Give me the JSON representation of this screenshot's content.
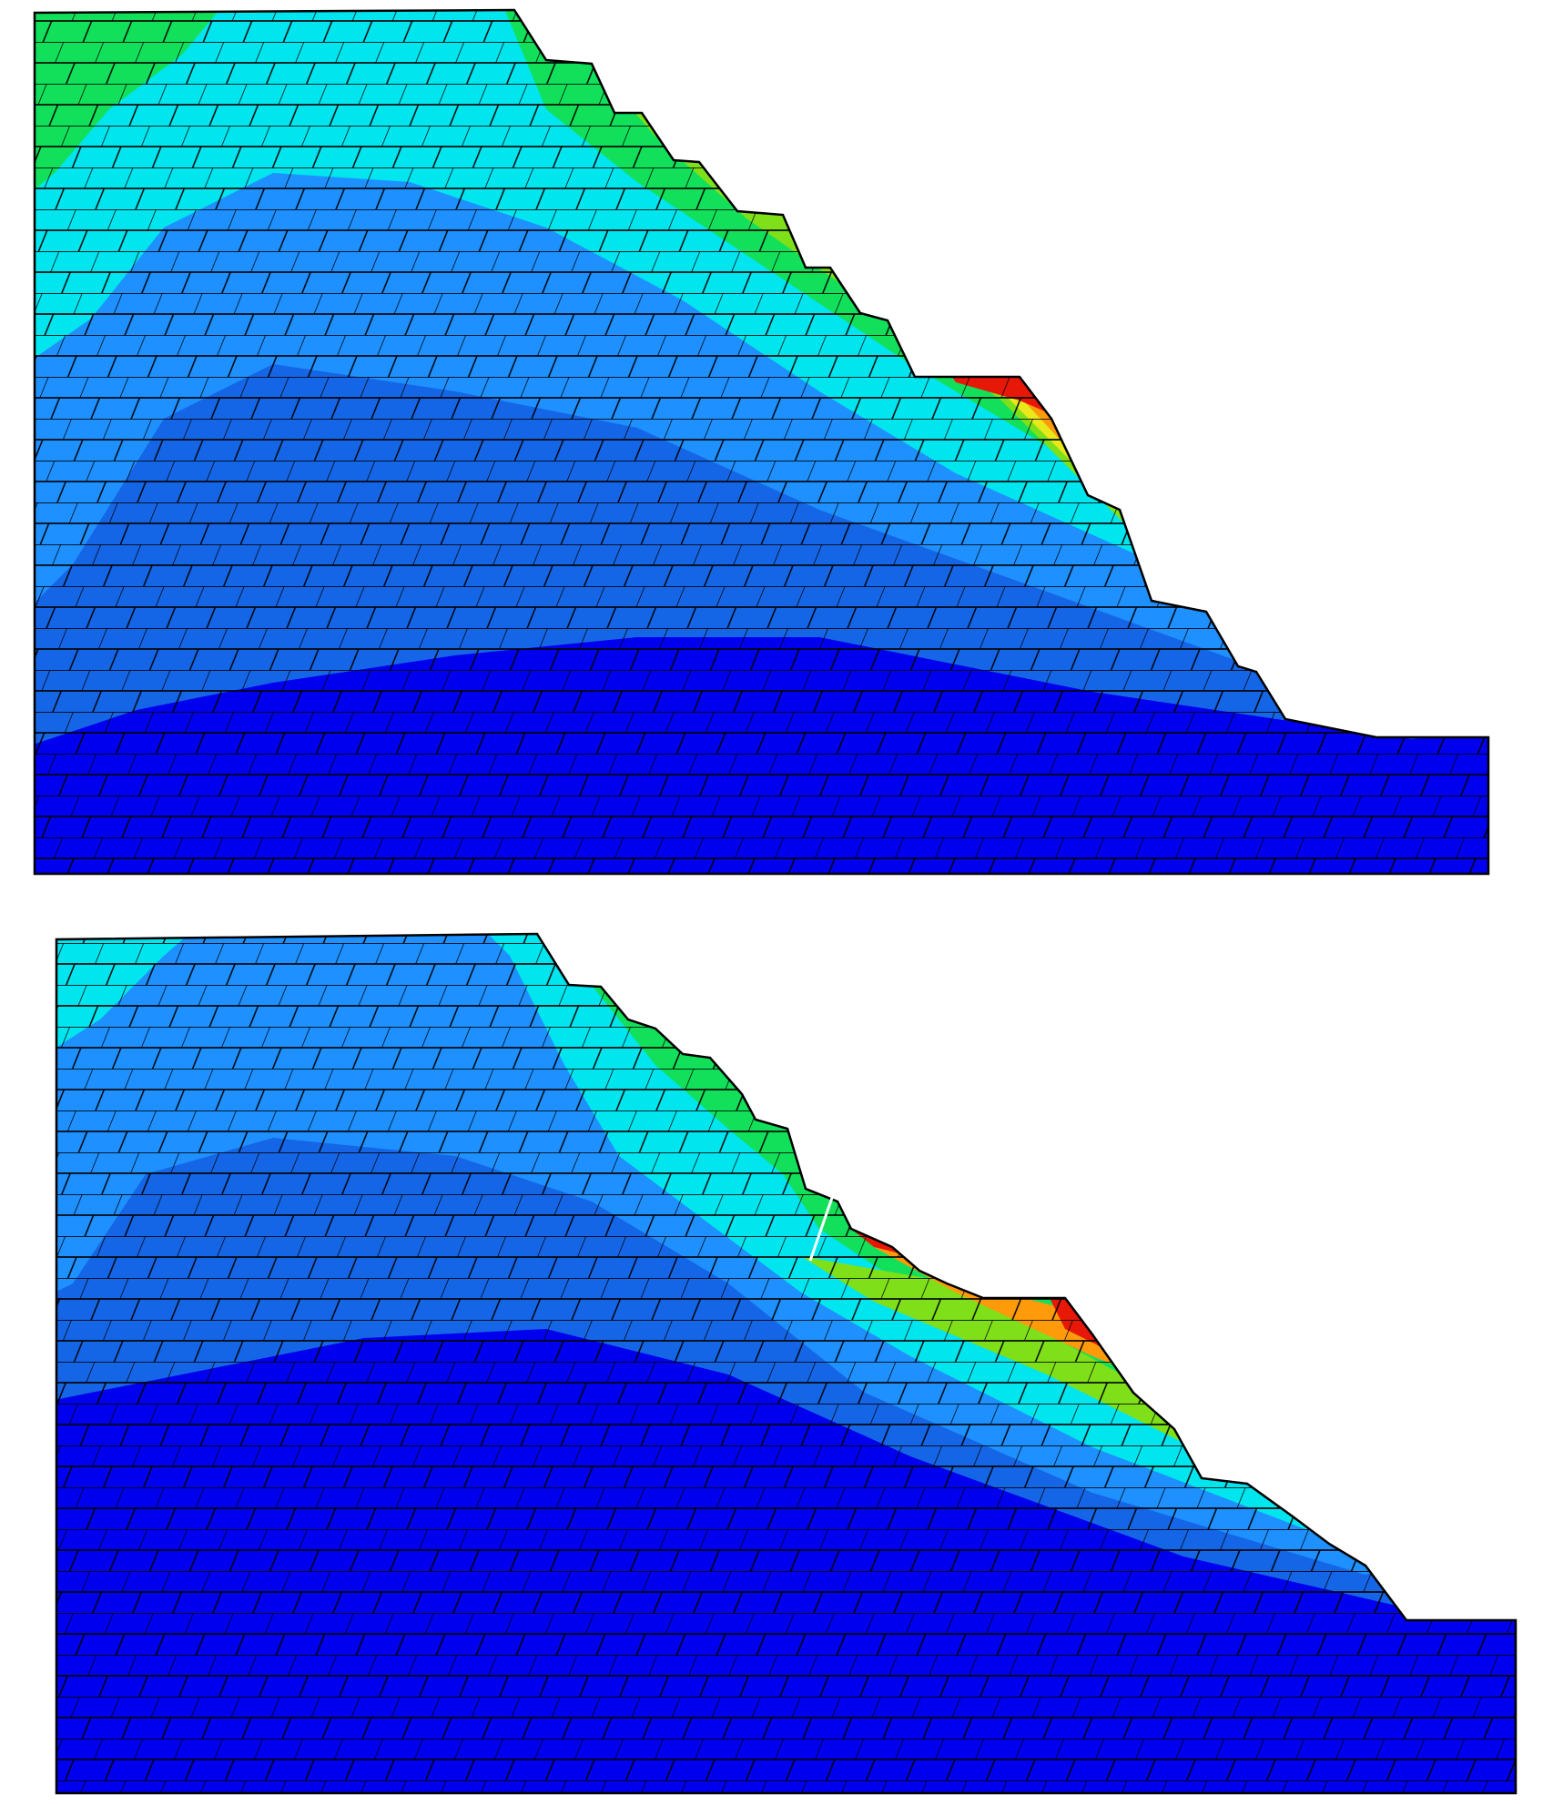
{
  "figure": {
    "description_free": true,
    "colormap": [
      "#0000ee",
      "#1566e6",
      "#1e90ff",
      "#00e5ee",
      "#12e05a",
      "#7fe01a",
      "#e8e81a",
      "#ff9a0a",
      "#e81808"
    ],
    "mesh_line_color": "#000000",
    "background": "#ffffff"
  },
  "panels": [
    {
      "id": "top"
    },
    {
      "id": "bottom"
    }
  ]
}
